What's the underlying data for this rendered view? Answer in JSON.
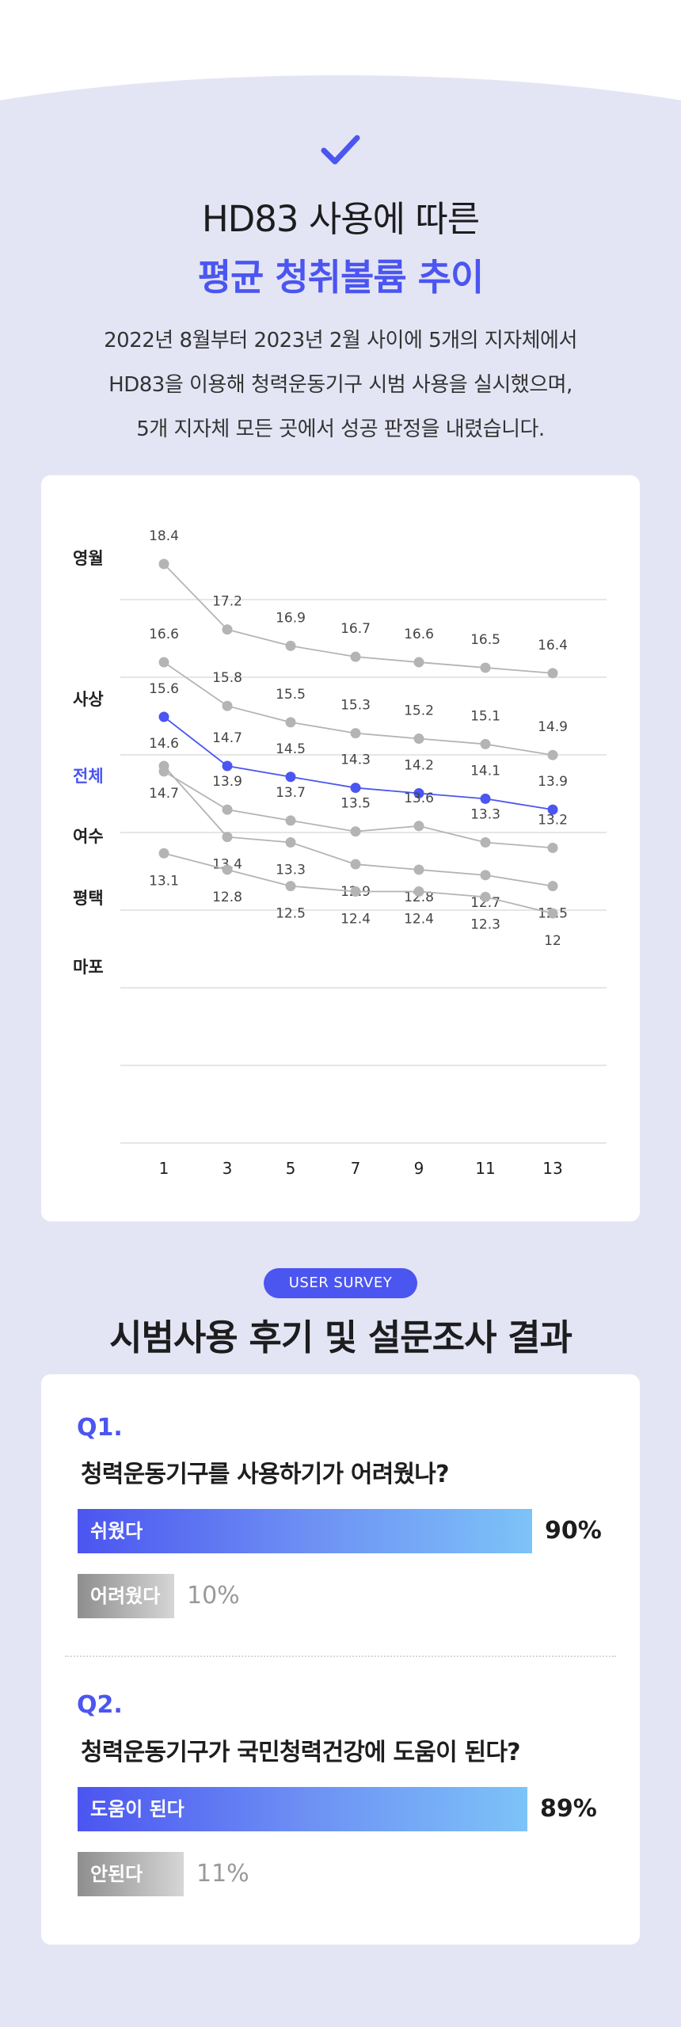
{
  "header": {
    "title_line1": "HD83 사용에 따른",
    "title_line2": "평균 청취볼륨 추이",
    "desc_line1": "2022년 8월부터 2023년 2월 사이에 5개의 지자체에서",
    "desc_line2": "HD83을 이용해 청력운동기구 시범 사용을 실시했으며,",
    "desc_line3": "5개 지자체 모든 곳에서 성공 판정을 내렸습니다."
  },
  "colors": {
    "accent": "#4b55f0",
    "series_gray": "#b4b4b4",
    "background": "#e4e5f4"
  },
  "chart_data": {
    "type": "line",
    "title": "평균 청취볼륨 추이",
    "x": [
      1,
      3,
      5,
      7,
      9,
      11,
      13
    ],
    "ylim": [
      11.0,
      18.4
    ],
    "grid": true,
    "legend": "left, labels beside each series start",
    "series": [
      {
        "name": "영월",
        "values": [
          18.4,
          17.2,
          16.9,
          16.7,
          16.6,
          16.5,
          16.4
        ],
        "highlight": false
      },
      {
        "name": "사상",
        "values": [
          16.6,
          15.8,
          15.5,
          15.3,
          15.2,
          15.1,
          14.9
        ],
        "highlight": false
      },
      {
        "name": "전체",
        "values": [
          15.6,
          14.7,
          14.5,
          14.3,
          14.2,
          14.1,
          13.9
        ],
        "highlight": true
      },
      {
        "name": "여수",
        "values": [
          14.6,
          13.9,
          13.7,
          13.5,
          13.6,
          13.3,
          13.2
        ],
        "highlight": false
      },
      {
        "name": "평택",
        "values": [
          14.7,
          13.4,
          13.3,
          12.9,
          12.8,
          12.7,
          12.5
        ],
        "highlight": false
      },
      {
        "name": "마포",
        "values": [
          13.1,
          12.8,
          12.5,
          12.4,
          12.4,
          12.3,
          12.0
        ],
        "highlight": false
      }
    ]
  },
  "survey": {
    "badge": "USER SURVEY",
    "title": "시범사용 후기 및 설문조사 결과",
    "questions": [
      {
        "num": "Q1.",
        "text": "청력운동기구를 사용하기가 어려웠나?",
        "answers": [
          {
            "label": "쉬웠다",
            "value": 90,
            "display": "90%"
          },
          {
            "label": "어려웠다",
            "value": 10,
            "display": "10%"
          }
        ]
      },
      {
        "num": "Q2.",
        "text": "청력운동기구가 국민청력건강에 도움이 된다?",
        "answers": [
          {
            "label": "도움이 된다",
            "value": 89,
            "display": "89%"
          },
          {
            "label": "안된다",
            "value": 11,
            "display": "11%"
          }
        ]
      }
    ]
  }
}
